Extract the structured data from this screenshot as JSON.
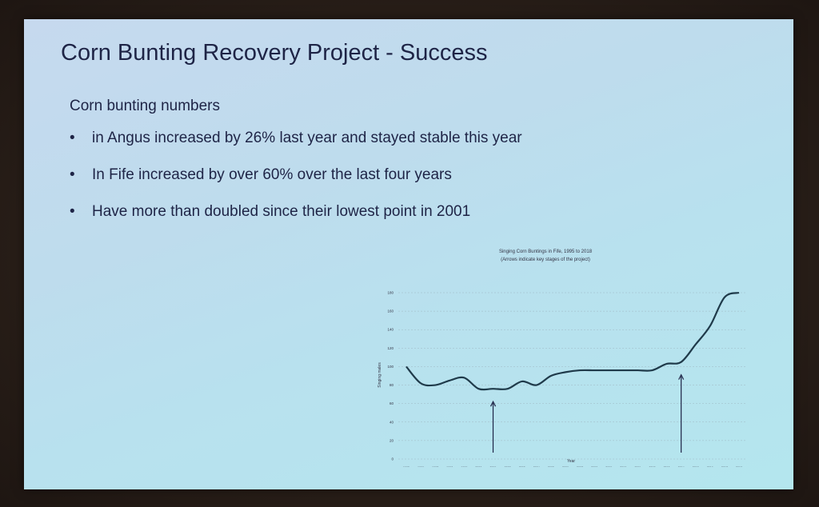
{
  "slide": {
    "title": "Corn Bunting Recovery Project - Success",
    "subtitle": "Corn bunting numbers",
    "bullets": [
      "in Angus increased by 26% last year and stayed stable this year",
      "In Fife increased by over 60% over the last four years",
      "Have more than doubled since their lowest point in 2001"
    ]
  },
  "chart_data": {
    "type": "line",
    "title": "Singing Corn Buntings in Fife, 1995 to 2018",
    "subtitle": "(Arrows indicate key stages of the project)",
    "xlabel": "Year",
    "ylabel": "Singing males",
    "x": [
      "1995",
      "1996",
      "1997",
      "1998",
      "1999",
      "2000",
      "2001",
      "2002",
      "2003",
      "2004",
      "2005",
      "2006",
      "2007",
      "2008",
      "2009",
      "2010",
      "2011",
      "2012",
      "2013",
      "2014",
      "2015",
      "2016",
      "2017",
      "2018"
    ],
    "series": [
      {
        "values": [
          100,
          82,
          80,
          85,
          88,
          76,
          76,
          76,
          84,
          80,
          90,
          94,
          96,
          96,
          96,
          96,
          96,
          96,
          103,
          105,
          124,
          144,
          175,
          180
        ]
      }
    ],
    "yticks": [
      0,
      20,
      40,
      60,
      80,
      100,
      120,
      140,
      160,
      180
    ],
    "ylim": [
      0,
      180
    ],
    "arrows_at": [
      "2001",
      "2014"
    ],
    "grid": true,
    "line_color": "#1f3a4a"
  }
}
